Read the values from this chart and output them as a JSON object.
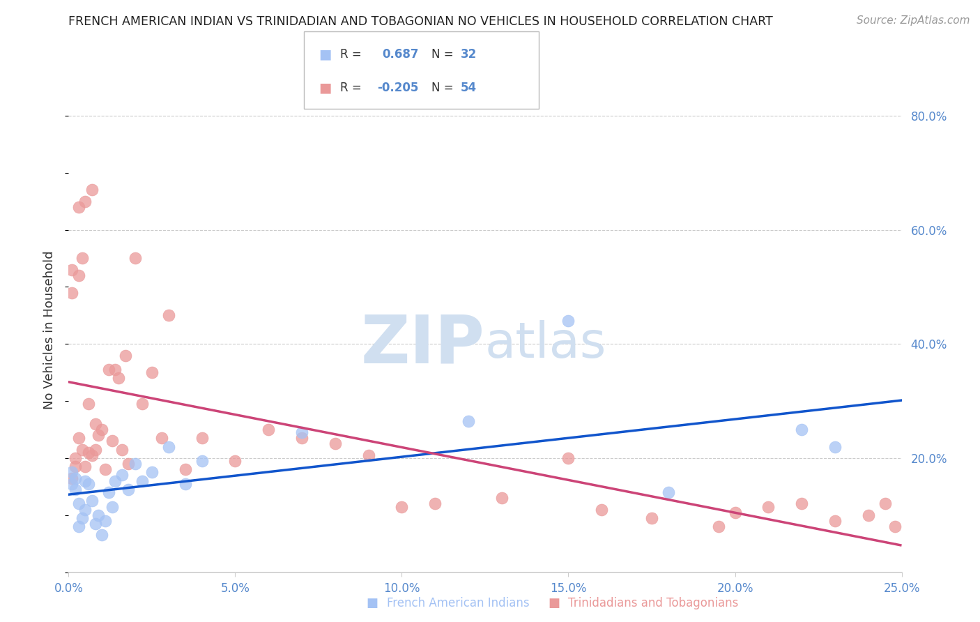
{
  "title": "FRENCH AMERICAN INDIAN VS TRINIDADIAN AND TOBAGONIAN NO VEHICLES IN HOUSEHOLD CORRELATION CHART",
  "source": "Source: ZipAtlas.com",
  "xlabel_blue": "French American Indians",
  "xlabel_pink": "Trinidadians and Tobagonians",
  "ylabel": "No Vehicles in Household",
  "blue_R": 0.687,
  "blue_N": 32,
  "pink_R": -0.205,
  "pink_N": 54,
  "blue_color": "#a4c2f4",
  "pink_color": "#ea9999",
  "blue_line_color": "#1155cc",
  "pink_line_color": "#cc4477",
  "xlim": [
    0.0,
    0.25
  ],
  "ylim": [
    0.0,
    0.85
  ],
  "xtick_values": [
    0.0,
    0.05,
    0.1,
    0.15,
    0.2,
    0.25
  ],
  "xtick_labels": [
    "0.0%",
    "5.0%",
    "10.0%",
    "15.0%",
    "20.0%",
    "25.0%"
  ],
  "yticks_right_values": [
    0.2,
    0.4,
    0.6,
    0.8
  ],
  "yticks_right_labels": [
    "20.0%",
    "40.0%",
    "60.0%",
    "80.0%"
  ],
  "blue_scatter_x": [
    0.001,
    0.001,
    0.002,
    0.002,
    0.003,
    0.003,
    0.004,
    0.005,
    0.005,
    0.006,
    0.007,
    0.008,
    0.009,
    0.01,
    0.011,
    0.012,
    0.013,
    0.014,
    0.016,
    0.018,
    0.02,
    0.022,
    0.025,
    0.03,
    0.035,
    0.04,
    0.07,
    0.12,
    0.15,
    0.18,
    0.22,
    0.23
  ],
  "blue_scatter_y": [
    0.175,
    0.155,
    0.165,
    0.145,
    0.08,
    0.12,
    0.095,
    0.11,
    0.16,
    0.155,
    0.125,
    0.085,
    0.1,
    0.065,
    0.09,
    0.14,
    0.115,
    0.16,
    0.17,
    0.145,
    0.19,
    0.16,
    0.175,
    0.22,
    0.155,
    0.195,
    0.245,
    0.265,
    0.44,
    0.14,
    0.25,
    0.22
  ],
  "pink_scatter_x": [
    0.001,
    0.001,
    0.001,
    0.002,
    0.002,
    0.003,
    0.003,
    0.003,
    0.004,
    0.004,
    0.005,
    0.005,
    0.006,
    0.006,
    0.007,
    0.007,
    0.008,
    0.008,
    0.009,
    0.01,
    0.011,
    0.012,
    0.013,
    0.014,
    0.015,
    0.016,
    0.017,
    0.018,
    0.02,
    0.022,
    0.025,
    0.028,
    0.03,
    0.035,
    0.04,
    0.05,
    0.06,
    0.07,
    0.08,
    0.09,
    0.1,
    0.11,
    0.13,
    0.15,
    0.16,
    0.175,
    0.195,
    0.2,
    0.21,
    0.22,
    0.23,
    0.24,
    0.245,
    0.248
  ],
  "pink_scatter_y": [
    0.53,
    0.49,
    0.165,
    0.185,
    0.2,
    0.52,
    0.235,
    0.64,
    0.215,
    0.55,
    0.185,
    0.65,
    0.21,
    0.295,
    0.205,
    0.67,
    0.26,
    0.215,
    0.24,
    0.25,
    0.18,
    0.355,
    0.23,
    0.355,
    0.34,
    0.215,
    0.38,
    0.19,
    0.55,
    0.295,
    0.35,
    0.235,
    0.45,
    0.18,
    0.235,
    0.195,
    0.25,
    0.235,
    0.225,
    0.205,
    0.115,
    0.12,
    0.13,
    0.2,
    0.11,
    0.095,
    0.08,
    0.105,
    0.115,
    0.12,
    0.09,
    0.1,
    0.12,
    0.08
  ],
  "watermark_zip": "ZIP",
  "watermark_atlas": "atlas",
  "watermark_color": "#d0dff0",
  "background_color": "#ffffff",
  "grid_color": "#cccccc",
  "tick_color": "#5588cc",
  "axis_color": "#cccccc",
  "title_color": "#222222",
  "source_color": "#999999",
  "label_color": "#333333"
}
